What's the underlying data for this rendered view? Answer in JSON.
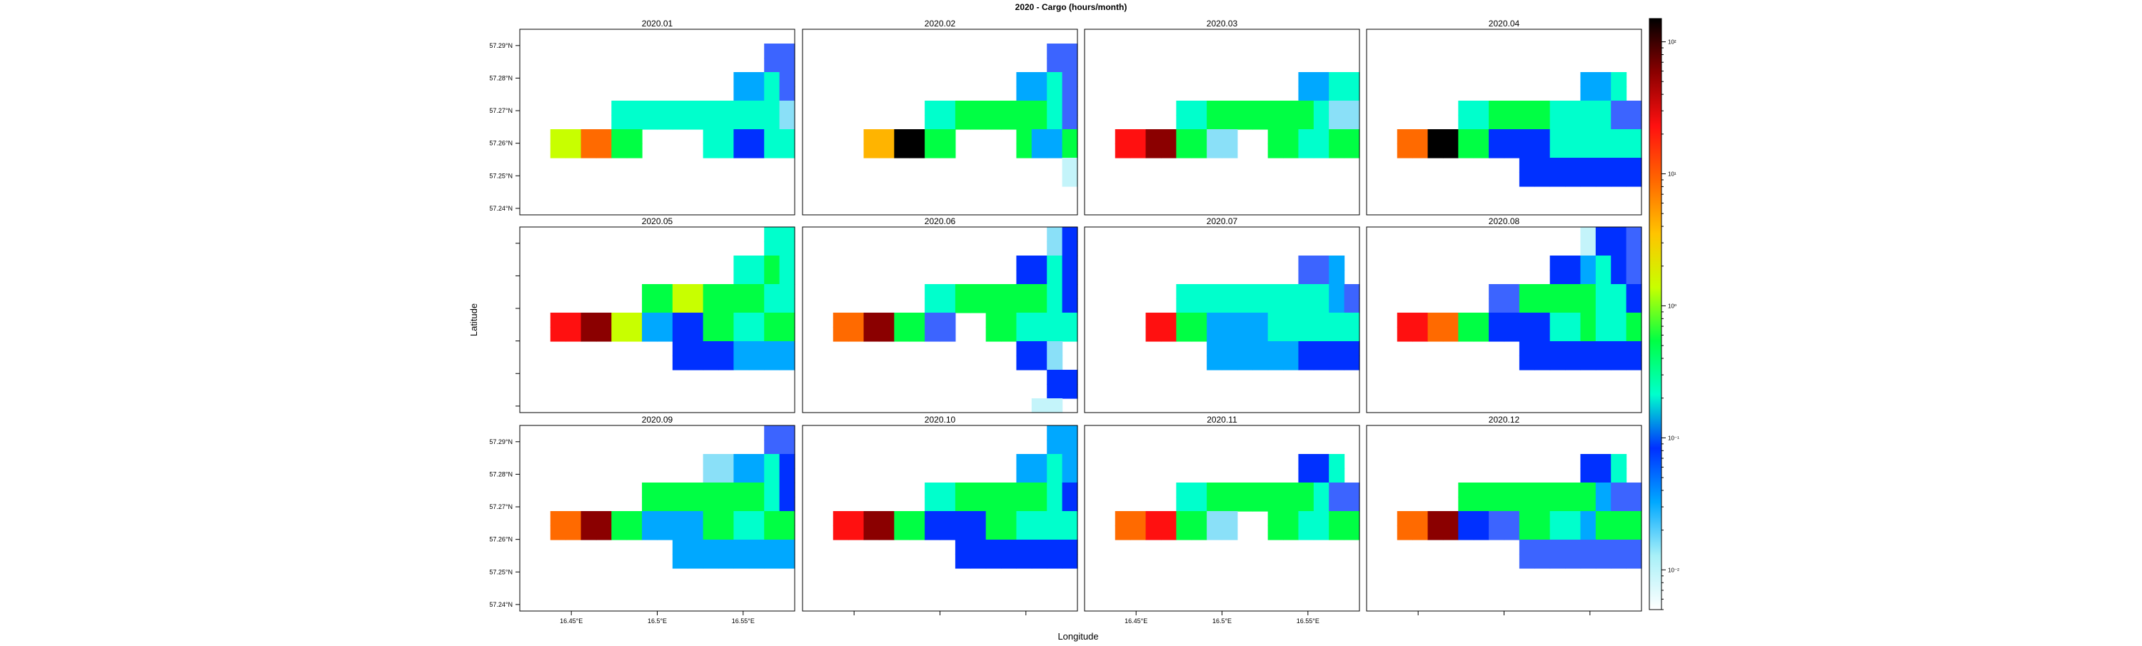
{
  "chart_data": {
    "type": "heatmap",
    "title": "2020 - Cargo (hours/month)",
    "xlabel": "Longitude",
    "ylabel": "Latitude",
    "x_ticks": [
      "16.45°E",
      "16.5°E",
      "16.55°E"
    ],
    "y_ticks": [
      "57.29°N",
      "57.28°N",
      "57.27°N",
      "57.26°N",
      "57.25°N",
      "57.24°N"
    ],
    "grid": {
      "cols": 18,
      "rows": 13,
      "lon_range": [
        16.42,
        16.58
      ],
      "lat_range": [
        57.238,
        57.295
      ]
    },
    "colorbar": {
      "scale": "log",
      "range": [
        0.005,
        150
      ],
      "tick_labels": [
        "10⁻²",
        "10⁻¹",
        "10⁰",
        "10¹",
        "10²"
      ],
      "tick_exponents": [
        -2,
        -1,
        0,
        1,
        2
      ],
      "colors": [
        "#ffffff",
        "#a8f0f8",
        "#00a8ff",
        "#0030ff",
        "#00ffcc",
        "#00ff44",
        "#c8ff00",
        "#ffc400",
        "#ff6600",
        "#ff1010",
        "#8b0000",
        "#000000"
      ]
    },
    "legend": "right",
    "color_key": {
      "L": "#c4f4fa",
      "M": "#8ae0f8",
      "C": "#00a8ff",
      "B": "#3c64ff",
      "D": "#0030ff",
      "T": "#00ffcc",
      "G": "#00ff44",
      "Y": "#c8ff00",
      "A": "#ffb400",
      "O": "#ff6a00",
      "R": "#ff1010",
      "K": "#8b0000",
      "X": "#000000"
    },
    "panels": [
      {
        "label": "2020.01",
        "rows": [
          "..................",
          "................BB",
          "................BB",
          "..............CCTB",
          "..............CCTB",
          "......TTTTTTTTTTTM",
          "......TTTTTTTTTTTM",
          "..YYOOGG....TTDDTT",
          "..YYOOGG....TTDDTT",
          "..................",
          "..................",
          "..................",
          ".................."
        ]
      },
      {
        "label": "2020.02",
        "rows": [
          "..................",
          "................BB",
          "................BB",
          "..............CCTB",
          "..............CCTB",
          "........TTGGGGGGTB",
          "........TTGGGGGGTB",
          "....AAXXGG....GCCG",
          "....AAXXGG....GCCG",
          ".................L",
          ".................L",
          "..................",
          ".................."
        ]
      },
      {
        "label": "2020.03",
        "rows": [
          "..................",
          "..................",
          "..................",
          "..............CCTT",
          "..............CCTT",
          "......TTGGGGGGGTMM",
          "......TTGGGGGGGTMM",
          "..RRKKGGMM..GGTTGG",
          "..RRKKGGMM..GGTTGG",
          "..................",
          "..................",
          "..................",
          ".................."
        ]
      },
      {
        "label": "2020.04",
        "rows": [
          "..................",
          "..................",
          "..................",
          "..............CCT.",
          "..............CCT.",
          "......TTGGGGTTTTBB",
          "......TTGGGGTTTTBB",
          "..OOXXGGDDDDTTTTTT",
          "..OOXXGGDDDDTTTTTT",
          "..........DDDDDDDD",
          "..........DDDDDDDD",
          "..................",
          ".................."
        ]
      },
      {
        "label": "2020.05",
        "rows": [
          "................TT",
          "................TT",
          "..............TTGT",
          "..............TTGT",
          "........GGYYGGGGTT",
          "........GGYYGGGGTT",
          "..RRKKYYCCDDGGTTGG",
          "..RRKKYYCCDDGGTTGG",
          "..........DDDDCCCC",
          "..........DDDDCCCC",
          "..................",
          "..................",
          ".................."
        ]
      },
      {
        "label": "2020.06",
        "rows": [
          "................MD",
          "................MD",
          "..............DDTD",
          "..............DDTD",
          "........TTGGGGGGTD",
          "........TTGGGGGGTD",
          "..OOKKGGBB..GGTTTT",
          "..OOKKGGBB..GGTTTT",
          "..............DDM.",
          "..............DDM.",
          "................DD",
          "................DD",
          "...............LL."
        ]
      },
      {
        "label": "2020.07",
        "rows": [
          "..................",
          "..................",
          "..............BBC.",
          "..............BBC.",
          "......TTTTTTTTTTCB",
          "......TTTTTTTTTTCB",
          "....RRGGCCCCTTTTTT",
          "....RRGGCCCCTTTTTT",
          "........CCCCCCDDDD",
          "........CCCCCCDDDD",
          "..................",
          "..................",
          ".................."
        ]
      },
      {
        "label": "2020.08",
        "rows": [
          "..............LDDB",
          "..............LDDB",
          "............DDCTDB",
          "............DDCTDB",
          "........BBGGGGGTTD",
          "........BBGGGGGTTD",
          "..RROOGGDDDDTTGTTG",
          "..RROOGGDDDDTTGTTG",
          "..........DDDDDDDD",
          "..........DDDDDDDD",
          "..................",
          "..................",
          ".................."
        ]
      },
      {
        "label": "2020.09",
        "rows": [
          "................BB",
          "................BB",
          "............MMCCTD",
          "............MMCCTD",
          "........GGGGGGGGTD",
          "........GGGGGGGGTD",
          "..OOKKGGCCCCGGTTGG",
          "..OOKKGGCCCCGGTTGG",
          "..........CCCCCCCC",
          "..........CCCCCCCC",
          "..................",
          "..................",
          ".................."
        ]
      },
      {
        "label": "2020.10",
        "rows": [
          "................CC",
          "................CC",
          "..............CCTC",
          "..............CCTC",
          "........TTGGGGGGTD",
          "........TTGGGGGGTD",
          "..RRKKGGDDDDGGTTTT",
          "..RRKKGGDDDDGGTTTT",
          "..........DDDDDDDD",
          "..........DDDDDDDD",
          "..................",
          "..................",
          ".................."
        ]
      },
      {
        "label": "2020.11",
        "rows": [
          "..................",
          "..................",
          "..............DDT.",
          "..............DDT.",
          "......TTGGGGGGGTBB",
          "......TTGGGGGGGTBB",
          "..OORRGGMM..GGTTGG",
          "..OORRGGMM..GGTTGG",
          "..................",
          "..................",
          "..................",
          "..................",
          ".................."
        ]
      },
      {
        "label": "2020.12",
        "rows": [
          "..................",
          "..................",
          "..............DDT.",
          "..............DDT.",
          "......GGGGGGGGGCBB",
          "......GGGGGGGGGCBB",
          "..OOKKDDBBGGTTCGGG",
          "..OOKKDDBBGGTTCGGG",
          "..........BBBBBBBB",
          "..........BBBBBBBB",
          "..................",
          "..................",
          ".................."
        ]
      }
    ]
  }
}
